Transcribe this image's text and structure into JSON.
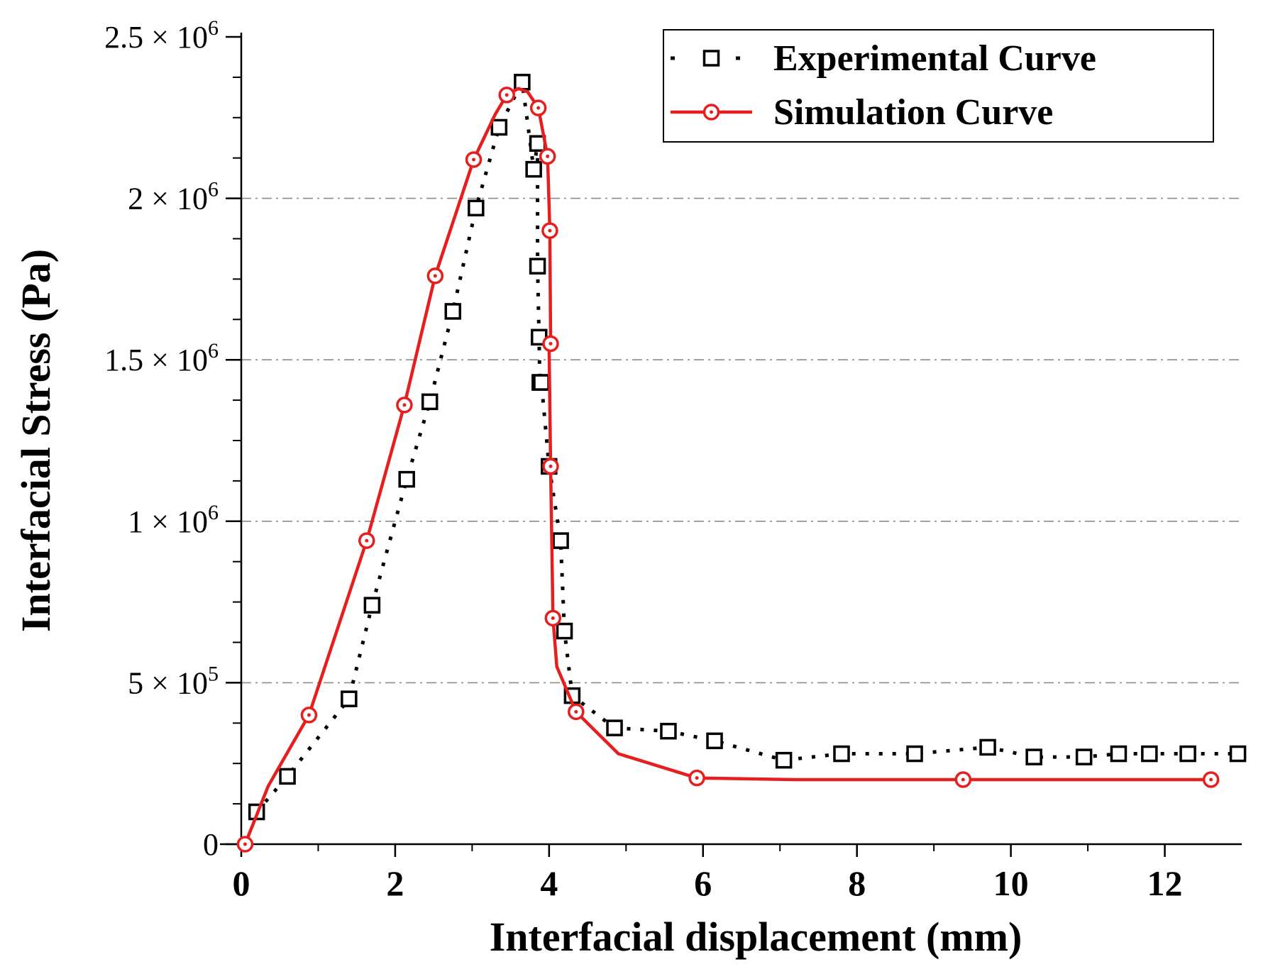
{
  "chart_data": {
    "type": "line",
    "title": "",
    "xlabel": "Interfacial displacement (mm)",
    "ylabel": "Interfacial Stress (Pa)",
    "xlim": [
      0,
      13
    ],
    "ylim": [
      0,
      2500000
    ],
    "x_ticks": [
      0,
      2,
      4,
      6,
      8,
      10,
      12
    ],
    "x_tick_labels": [
      "0",
      "2",
      "4",
      "6",
      "8",
      "10",
      "12"
    ],
    "y_ticks": [
      0,
      500000,
      1000000,
      1500000,
      2000000,
      2500000
    ],
    "y_tick_labels": [
      {
        "base": "0",
        "exp": ""
      },
      {
        "base": "5 × 10",
        "exp": "5"
      },
      {
        "base": "1 × 10",
        "exp": "6"
      },
      {
        "base": "1.5 × 10",
        "exp": "6"
      },
      {
        "base": "2 × 10",
        "exp": "6"
      },
      {
        "base": "2.5 × 10",
        "exp": "6"
      }
    ],
    "y_gridlines": [
      500000,
      1000000,
      1500000,
      2000000
    ],
    "legend_position": "top-right",
    "series": [
      {
        "name": "Experimental Curve",
        "color": "#000000",
        "line_style": "dotted",
        "marker": "square",
        "x": [
          0.2,
          0.6,
          1.4,
          1.7,
          2.15,
          2.45,
          2.75,
          3.05,
          3.35,
          3.65,
          3.8,
          3.85,
          3.85,
          3.87,
          3.88,
          3.9,
          4.0,
          4.15,
          4.2,
          4.3,
          4.85,
          5.55,
          6.15,
          7.05,
          7.8,
          8.75,
          9.7,
          10.3,
          10.95,
          11.4,
          11.8,
          12.3,
          12.95
        ],
        "y": [
          100000,
          210000,
          450000,
          740000,
          1130000,
          1370000,
          1650000,
          1970000,
          2220000,
          2360000,
          2090000,
          2170000,
          1790000,
          1570000,
          1430000,
          1430000,
          1170000,
          940000,
          660000,
          460000,
          360000,
          350000,
          320000,
          260000,
          280000,
          280000,
          300000,
          270000,
          270000,
          280000,
          280000,
          280000,
          280000
        ]
      },
      {
        "name": "Simulation Curve",
        "color": "#e61e1e",
        "line_style": "solid",
        "marker": "circle-dot",
        "x": [
          0.05,
          0.35,
          0.88,
          1.63,
          2.12,
          2.52,
          3.02,
          3.3,
          3.45,
          3.6,
          3.72,
          3.86,
          3.98,
          4.01,
          4.02,
          4.0,
          4.02,
          4.05,
          4.1,
          4.35,
          4.9,
          5.92,
          7.2,
          9.38,
          12.6
        ],
        "y": [
          0,
          180000,
          400000,
          940000,
          1360000,
          1760000,
          2120000,
          2260000,
          2320000,
          2340000,
          2330000,
          2280000,
          2130000,
          1900000,
          1550000,
          1550000,
          1170000,
          700000,
          550000,
          410000,
          280000,
          205000,
          200000,
          200000,
          200000
        ],
        "marker_indices": [
          0,
          2,
          3,
          4,
          5,
          6,
          8,
          11,
          12,
          13,
          14,
          16,
          17,
          19,
          21,
          23,
          24
        ]
      }
    ]
  }
}
